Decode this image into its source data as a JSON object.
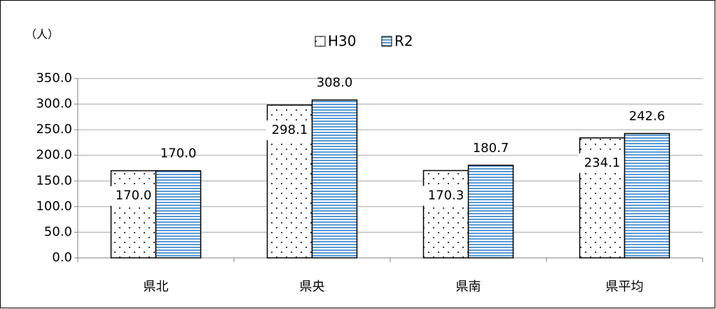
{
  "chart_data": {
    "type": "bar",
    "unit_label": "（人）",
    "categories": [
      "県北",
      "県央",
      "県南",
      "県平均"
    ],
    "series": [
      {
        "name": "H30",
        "color": "#000000",
        "pattern": "dots",
        "values": [
          170.0,
          298.1,
          170.3,
          234.1
        ],
        "value_labels": [
          "170.0",
          "298.1",
          "170.3",
          "234.1"
        ]
      },
      {
        "name": "R2",
        "color": "#5b9bd5",
        "pattern": "horizontal-stripes",
        "values": [
          170.0,
          308.0,
          180.7,
          242.6
        ],
        "value_labels": [
          "170.0",
          "308.0",
          "180.7",
          "242.6"
        ]
      }
    ],
    "ylim": [
      0,
      350
    ],
    "yticks": [
      {
        "value": 0,
        "label": "0.0"
      },
      {
        "value": 50,
        "label": "50.0"
      },
      {
        "value": 100,
        "label": "100.0"
      },
      {
        "value": 150,
        "label": "150.0"
      },
      {
        "value": 200,
        "label": "200.0"
      },
      {
        "value": 250,
        "label": "250.0"
      },
      {
        "value": 300,
        "label": "300.0"
      },
      {
        "value": 350,
        "label": "350.0"
      }
    ],
    "grid": true,
    "legend": "top"
  }
}
